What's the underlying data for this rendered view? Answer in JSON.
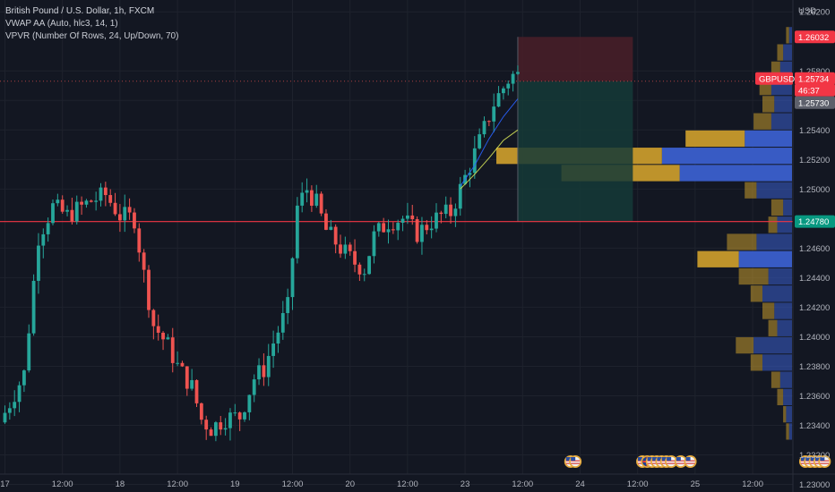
{
  "header": {
    "title": "British Pound / U.S. Dollar, 1h, FXCM",
    "indicator_1": "VWAP AA (Auto, hlc3, 14, 1)",
    "indicator_2": "VPVR (Number Of Rows, 24, Up/Down, 70)"
  },
  "price_axis": {
    "unit": "USD"
  },
  "chart_data": {
    "type": "candlestick",
    "symbol": "GBPUSD",
    "timeframe": "1h",
    "ylim": [
      1.2307,
      1.2628
    ],
    "y_ticks": [
      1.262,
      1.258,
      1.256,
      1.254,
      1.252,
      1.25,
      1.246,
      1.244,
      1.242,
      1.24,
      1.238,
      1.236,
      1.234,
      1.232,
      1.23
    ],
    "x_ticks": [
      "17",
      "12:00",
      "18",
      "12:00",
      "19",
      "12:00",
      "20",
      "12:00",
      "23",
      "12:00",
      "24",
      "12:00",
      "25",
      "12:00"
    ],
    "x_tick_bar_index": [
      0,
      12,
      24,
      36,
      48,
      60,
      72,
      84,
      96,
      108,
      120,
      132,
      144,
      156
    ],
    "anchors": [
      [
        0,
        1.2342
      ],
      [
        5,
        1.2375
      ],
      [
        8,
        1.2468
      ],
      [
        11,
        1.2488
      ],
      [
        14,
        1.2482
      ],
      [
        19,
        1.2492
      ],
      [
        22,
        1.2496
      ],
      [
        25,
        1.2482
      ],
      [
        28,
        1.248
      ],
      [
        30,
        1.2442
      ],
      [
        32,
        1.2408
      ],
      [
        35,
        1.2394
      ],
      [
        37,
        1.238
      ],
      [
        40,
        1.2366
      ],
      [
        42,
        1.2344
      ],
      [
        44,
        1.2338
      ],
      [
        47,
        1.2345
      ],
      [
        50,
        1.2346
      ],
      [
        53,
        1.2372
      ],
      [
        55,
        1.2378
      ],
      [
        57,
        1.2396
      ],
      [
        60,
        1.242
      ],
      [
        62,
        1.2488
      ],
      [
        64,
        1.25
      ],
      [
        66,
        1.249
      ],
      [
        68,
        1.2472
      ],
      [
        71,
        1.246
      ],
      [
        74,
        1.245
      ],
      [
        76,
        1.2446
      ],
      [
        78,
        1.2468
      ],
      [
        81,
        1.2478
      ],
      [
        84,
        1.248
      ],
      [
        87,
        1.247
      ],
      [
        90,
        1.2478
      ],
      [
        92,
        1.2482
      ],
      [
        94,
        1.2484
      ],
      [
        97,
        1.2508
      ],
      [
        100,
        1.2532
      ],
      [
        103,
        1.2558
      ],
      [
        106,
        1.2574
      ],
      [
        107,
        1.2577
      ]
    ],
    "vwap_lines": [
      {
        "color": "#2962ff",
        "points": [
          [
            95,
            1.2502
          ],
          [
            98,
            1.2516
          ],
          [
            101,
            1.2534
          ],
          [
            104,
            1.2549
          ],
          [
            107,
            1.2561
          ]
        ]
      },
      {
        "color": "#d4e157",
        "points": [
          [
            95,
            1.25
          ],
          [
            98,
            1.251
          ],
          [
            101,
            1.2521
          ],
          [
            104,
            1.2533
          ],
          [
            107,
            1.254
          ]
        ]
      }
    ],
    "position": {
      "entry": 1.2573,
      "stop": 1.2603,
      "target": 1.2478,
      "start_bar": 107,
      "end_bar": 131
    },
    "horizontal_line": {
      "price": 1.2478,
      "color": "#f23645"
    },
    "labels": {
      "stop_price": "1.26032",
      "symbol_tag": "GBPUSD",
      "current_price": "1.25734",
      "countdown": "46:37",
      "entry_price": "1.25730",
      "line_price": "1.24780"
    },
    "vpvr": {
      "row_count": 24,
      "price_min": 1.233,
      "price_max": 1.261,
      "rows_top_to_bottom": [
        {
          "up": 0.01,
          "down": 0.01
        },
        {
          "up": 0.02,
          "down": 0.03
        },
        {
          "up": 0.03,
          "down": 0.04
        },
        {
          "up": 0.04,
          "down": 0.07
        },
        {
          "up": 0.04,
          "down": 0.06
        },
        {
          "up": 0.06,
          "down": 0.07
        },
        {
          "up": 0.2,
          "down": 0.16
        },
        {
          "up": 0.56,
          "down": 0.44
        },
        {
          "up": 0.4,
          "down": 0.38
        },
        {
          "up": 0.04,
          "down": 0.12
        },
        {
          "up": 0.04,
          "down": 0.03
        },
        {
          "up": 0.03,
          "down": 0.05
        },
        {
          "up": 0.1,
          "down": 0.12
        },
        {
          "up": 0.14,
          "down": 0.18
        },
        {
          "up": 0.1,
          "down": 0.08
        },
        {
          "up": 0.04,
          "down": 0.1
        },
        {
          "up": 0.04,
          "down": 0.06
        },
        {
          "up": 0.03,
          "down": 0.05
        },
        {
          "up": 0.06,
          "down": 0.13
        },
        {
          "up": 0.04,
          "down": 0.1
        },
        {
          "up": 0.03,
          "down": 0.04
        },
        {
          "up": 0.02,
          "down": 0.03
        },
        {
          "up": 0.01,
          "down": 0.02
        },
        {
          "up": 0.01,
          "down": 0.01
        }
      ]
    },
    "events": [
      {
        "bar": 118,
        "icons": [
          "us"
        ]
      },
      {
        "bar": 119,
        "icons": [
          "us"
        ]
      },
      {
        "bar": 133,
        "icons": [
          "us"
        ]
      },
      {
        "bar": 134,
        "icons": [
          "gb"
        ]
      },
      {
        "bar": 135,
        "icons": [
          "us"
        ]
      },
      {
        "bar": 136,
        "icons": [
          "us"
        ]
      },
      {
        "bar": 137,
        "icons": [
          "us"
        ]
      },
      {
        "bar": 138,
        "icons": [
          "us"
        ]
      },
      {
        "bar": 139,
        "icons": [
          "us"
        ]
      },
      {
        "bar": 141,
        "icons": [
          "us"
        ]
      },
      {
        "bar": 143,
        "icons": [
          "us"
        ]
      },
      {
        "bar": 167,
        "icons": [
          "us"
        ]
      },
      {
        "bar": 168,
        "icons": [
          "us"
        ]
      },
      {
        "bar": 169,
        "icons": [
          "us"
        ]
      },
      {
        "bar": 170,
        "icons": [
          "us"
        ]
      },
      {
        "bar": 171,
        "icons": [
          "us"
        ]
      }
    ],
    "colors": {
      "up": "#26a69a",
      "down": "#ef5350",
      "grid": "#1e222d",
      "background": "#131722",
      "vp_up": "#c79a2c",
      "vp_down": "#3a5fcd",
      "stop_zone": "#4a1f28",
      "target_zone": "#153a37"
    }
  }
}
